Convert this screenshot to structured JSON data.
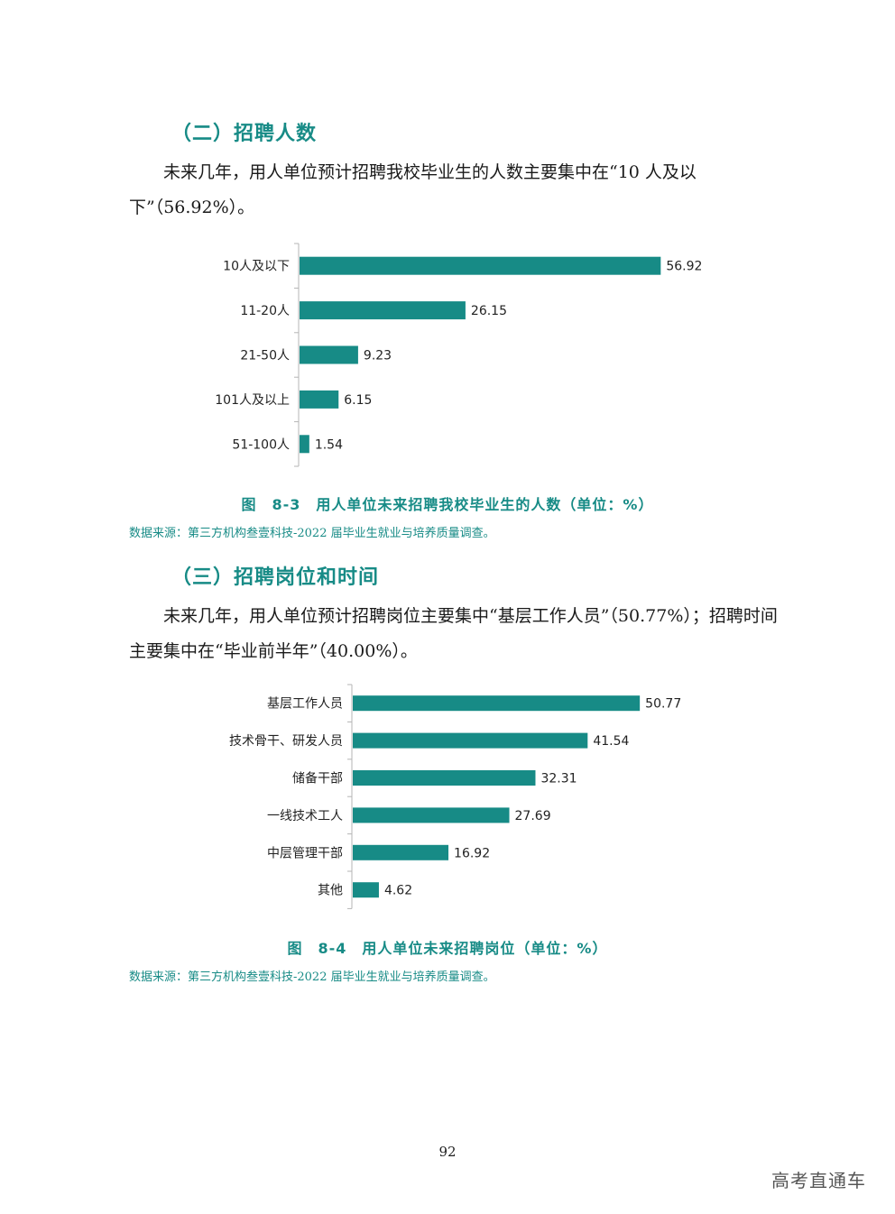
{
  "section2": {
    "heading": "（二）招聘人数",
    "paragraph": "未来几年，用人单位预计招聘我校毕业生的人数主要集中在“10 人及以下”（56.92%）。"
  },
  "figure1": {
    "caption": "图　8-3　用人单位未来招聘我校毕业生的人数（单位：%）",
    "source": "数据来源：第三方机构叁壹科技-2022 届毕业生就业与培养质量调查。"
  },
  "section3": {
    "heading": "（三）招聘岗位和时间",
    "paragraph": "未来几年，用人单位预计招聘岗位主要集中“基层工作人员”（50.77%）；招聘时间主要集中在“毕业前半年”（40.00%）。"
  },
  "figure2": {
    "caption": "图　8-4　用人单位未来招聘岗位（单位：%）",
    "source": "数据来源：第三方机构叁壹科技-2022 届毕业生就业与培养质量调查。"
  },
  "page_number": "92",
  "watermark": "高考直通车",
  "colors": {
    "bar": "#178b86",
    "accent": "#178b86"
  },
  "chart_data": [
    {
      "type": "bar",
      "orientation": "horizontal",
      "categories": [
        "10人及以下",
        "11-20人",
        "21-50人",
        "101人及以上",
        "51-100人"
      ],
      "values": [
        56.92,
        26.15,
        9.23,
        6.15,
        1.54
      ],
      "value_labels": [
        "56.92",
        "26.15",
        "9.23",
        "6.15",
        "1.54"
      ],
      "xlim": [
        0,
        60
      ]
    },
    {
      "type": "bar",
      "orientation": "horizontal",
      "categories": [
        "基层工作人员",
        "技术骨干、研发人员",
        "储备干部",
        "一线技术工人",
        "中层管理干部",
        "其他"
      ],
      "values": [
        50.77,
        41.54,
        32.31,
        27.69,
        16.92,
        4.62
      ],
      "value_labels": [
        "50.77",
        "41.54",
        "32.31",
        "27.69",
        "16.92",
        "4.62"
      ],
      "xlim": [
        0,
        60
      ]
    }
  ]
}
